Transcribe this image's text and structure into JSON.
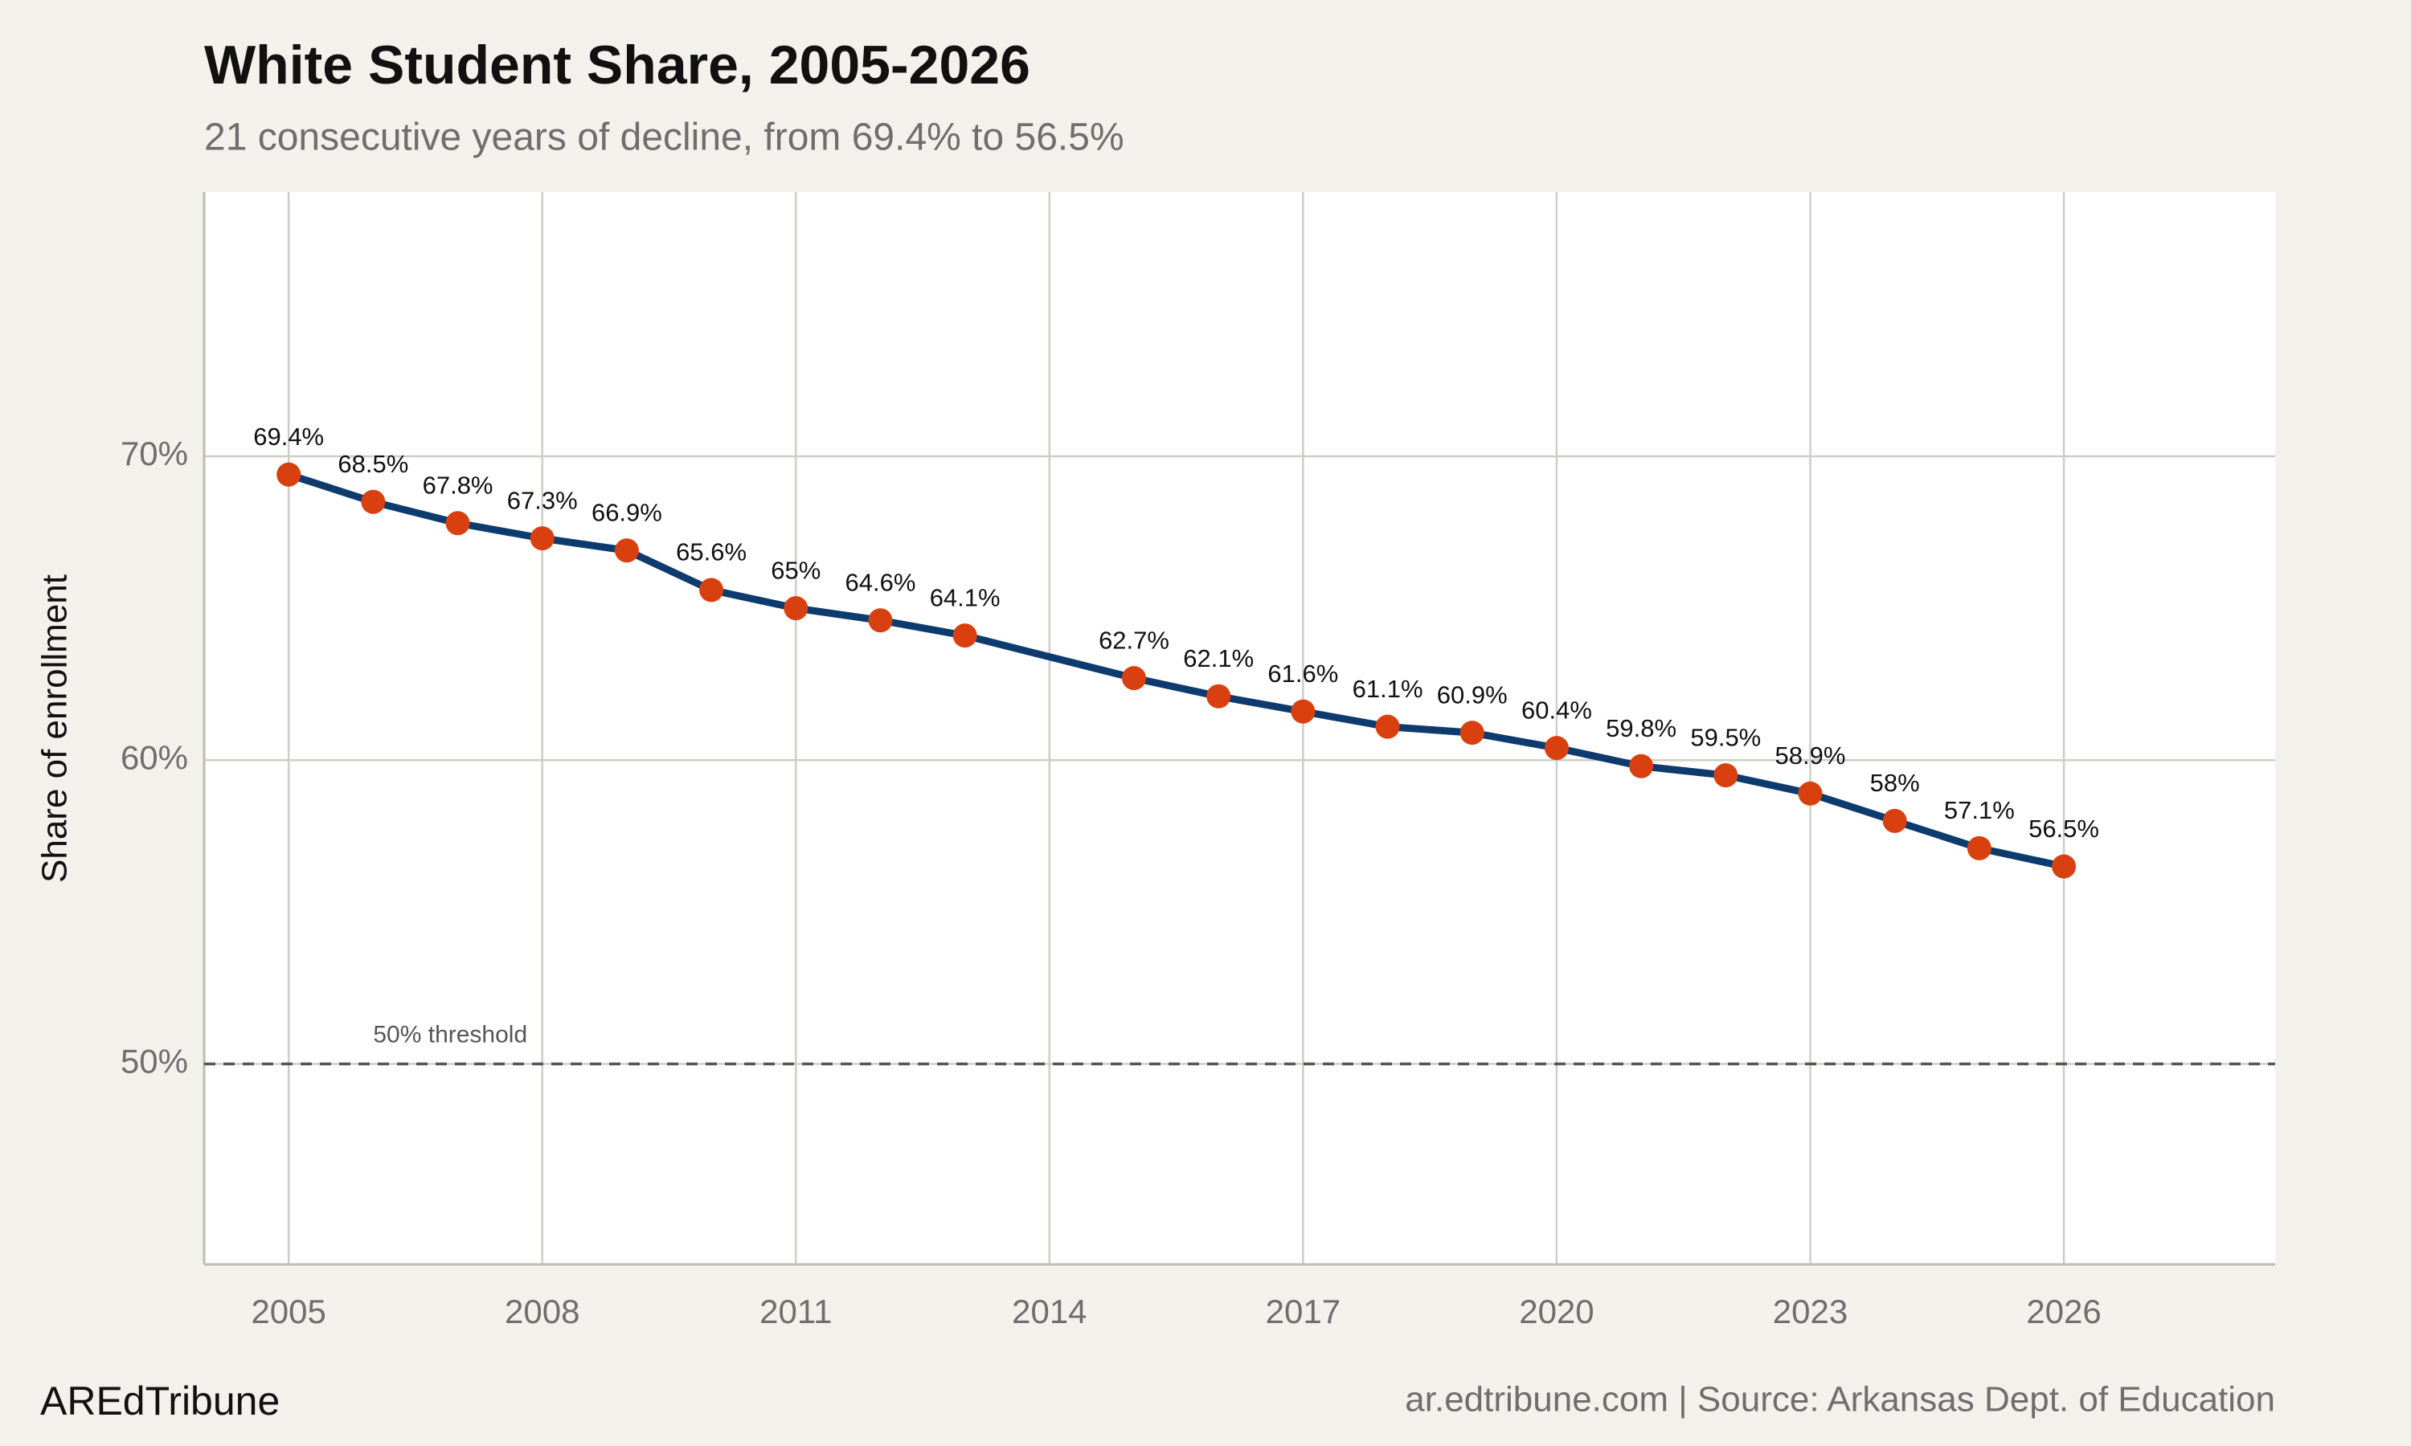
{
  "chart_data": {
    "type": "line",
    "title": "White Student Share, 2005-2026",
    "subtitle": "21 consecutive years of decline, from 69.4% to 56.5%",
    "y_label": "Share of enrollment",
    "brand": "AREdTribune",
    "source": "ar.edtribune.com | Source: Arkansas Dept. of Education",
    "x": [
      2005,
      2006,
      2007,
      2008,
      2009,
      2010,
      2011,
      2012,
      2013,
      2015,
      2016,
      2017,
      2018,
      2019,
      2020,
      2021,
      2022,
      2023,
      2024,
      2025,
      2026
    ],
    "series": [
      {
        "name": "White student share",
        "color": "#0d3b6e",
        "marker_color": "#d9400f",
        "values": [
          69.4,
          68.5,
          67.8,
          67.3,
          66.9,
          65.6,
          65,
          64.6,
          64.1,
          62.7,
          62.1,
          61.6,
          61.1,
          60.9,
          60.4,
          59.8,
          59.5,
          58.9,
          58,
          57.1,
          56.5
        ],
        "value_labels": [
          "69.4%",
          "68.5%",
          "67.8%",
          "67.3%",
          "66.9%",
          "65.6%",
          "65%",
          "64.6%",
          "64.1%",
          "62.7%",
          "62.1%",
          "61.6%",
          "61.1%",
          "60.9%",
          "60.4%",
          "59.8%",
          "59.5%",
          "58.9%",
          "58%",
          "57.1%",
          "56.5%"
        ]
      }
    ],
    "xlim": [
      2004,
      2028.5
    ],
    "ylim": [
      43.4,
      78.7
    ],
    "xticks": [
      2005,
      2008,
      2011,
      2014,
      2017,
      2020,
      2023,
      2026
    ],
    "yticks": [
      {
        "value": 50,
        "label": "50%"
      },
      {
        "value": 60,
        "label": "60%"
      },
      {
        "value": 70,
        "label": "70%"
      }
    ],
    "grid": true,
    "reference_line": {
      "value": 50,
      "label": "50% threshold",
      "color": "#555555"
    }
  }
}
